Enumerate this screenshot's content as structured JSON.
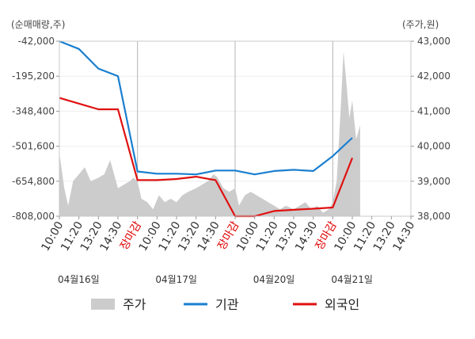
{
  "chart_data": {
    "type": "line",
    "left_axis_title": "(순매매량,주)",
    "right_axis_title": "(주가,원)",
    "left_ticks": [
      "-42,000",
      "-195,200",
      "-348,400",
      "-501,600",
      "-654,800",
      "-808,000"
    ],
    "right_ticks": [
      "43,000",
      "42,000",
      "41,000",
      "40,000",
      "39,000",
      "38,000"
    ],
    "left_range": [
      -808000,
      -42000
    ],
    "right_range": [
      38000,
      43000
    ],
    "x_ticks": [
      {
        "label": "10:00",
        "close": false
      },
      {
        "label": "11:20",
        "close": false
      },
      {
        "label": "13:20",
        "close": false
      },
      {
        "label": "14:30",
        "close": false
      },
      {
        "label": "장마감",
        "close": true
      },
      {
        "label": "10:00",
        "close": false
      },
      {
        "label": "11:20",
        "close": false
      },
      {
        "label": "13:20",
        "close": false
      },
      {
        "label": "14:30",
        "close": false
      },
      {
        "label": "장마감",
        "close": true
      },
      {
        "label": "10:00",
        "close": false
      },
      {
        "label": "11:20",
        "close": false
      },
      {
        "label": "13:20",
        "close": false
      },
      {
        "label": "14:30",
        "close": false
      },
      {
        "label": "장마감",
        "close": true
      },
      {
        "label": "10:00",
        "close": false
      },
      {
        "label": "11:20",
        "close": false
      },
      {
        "label": "13:20",
        "close": false
      },
      {
        "label": "14:30",
        "close": false
      }
    ],
    "dates": [
      "04월16일",
      "04월17일",
      "04월20일",
      "04월21일"
    ],
    "series": [
      {
        "name": "기관",
        "axis": "left",
        "color": "#1a7fd0",
        "points": [
          [
            0,
            -42000
          ],
          [
            1,
            -76000
          ],
          [
            2,
            -162000
          ],
          [
            3,
            -195000
          ],
          [
            4,
            -612000
          ],
          [
            5,
            -622000
          ],
          [
            6,
            -622000
          ],
          [
            7,
            -625000
          ],
          [
            8,
            -608000
          ],
          [
            9,
            -608000
          ],
          [
            10,
            -625000
          ],
          [
            11,
            -610000
          ],
          [
            12,
            -605000
          ],
          [
            13,
            -610000
          ],
          [
            14,
            -545000
          ],
          [
            15,
            -465000
          ]
        ]
      },
      {
        "name": "외국인",
        "axis": "left",
        "color": "#e01010",
        "points": [
          [
            0,
            -290000
          ],
          [
            1,
            -315000
          ],
          [
            2,
            -340000
          ],
          [
            3,
            -340000
          ],
          [
            4,
            -650000
          ],
          [
            5,
            -650000
          ],
          [
            6,
            -645000
          ],
          [
            7,
            -635000
          ],
          [
            8,
            -650000
          ],
          [
            9,
            -808000
          ],
          [
            10,
            -808000
          ],
          [
            11,
            -785000
          ],
          [
            12,
            -780000
          ],
          [
            13,
            -775000
          ],
          [
            14,
            -770000
          ],
          [
            15,
            -553000
          ]
        ]
      }
    ],
    "price_series": {
      "name": "주가",
      "axis": "right",
      "color": "#cccccc",
      "points": [
        [
          0,
          39800
        ],
        [
          0.25,
          38800
        ],
        [
          0.45,
          38300
        ],
        [
          0.7,
          39000
        ],
        [
          1.0,
          39200
        ],
        [
          1.3,
          39400
        ],
        [
          1.6,
          39000
        ],
        [
          2.0,
          39100
        ],
        [
          2.3,
          39200
        ],
        [
          2.6,
          39600
        ],
        [
          2.8,
          39200
        ],
        [
          3.0,
          38800
        ],
        [
          3.3,
          38900
        ],
        [
          3.6,
          39000
        ],
        [
          3.8,
          39100
        ],
        [
          4.0,
          39000
        ],
        [
          4.2,
          38500
        ],
        [
          4.5,
          38400
        ],
        [
          4.8,
          38200
        ],
        [
          5.1,
          38600
        ],
        [
          5.4,
          38400
        ],
        [
          5.7,
          38500
        ],
        [
          6.0,
          38400
        ],
        [
          6.3,
          38600
        ],
        [
          6.6,
          38700
        ],
        [
          7.0,
          38800
        ],
        [
          7.3,
          38900
        ],
        [
          7.6,
          39000
        ],
        [
          7.9,
          39200
        ],
        [
          8.1,
          39100
        ],
        [
          8.4,
          38800
        ],
        [
          8.7,
          38700
        ],
        [
          9.0,
          38800
        ],
        [
          9.2,
          38300
        ],
        [
          9.5,
          38600
        ],
        [
          9.8,
          38700
        ],
        [
          10.1,
          38600
        ],
        [
          10.4,
          38500
        ],
        [
          10.7,
          38400
        ],
        [
          11.0,
          38300
        ],
        [
          11.3,
          38200
        ],
        [
          11.6,
          38300
        ],
        [
          12.0,
          38200
        ],
        [
          12.3,
          38300
        ],
        [
          12.6,
          38400
        ],
        [
          12.9,
          38200
        ],
        [
          13.2,
          38300
        ],
        [
          13.5,
          38100
        ],
        [
          13.8,
          38200
        ],
        [
          14.0,
          38400
        ],
        [
          14.2,
          39000
        ],
        [
          14.4,
          41000
        ],
        [
          14.55,
          42700
        ],
        [
          14.7,
          41800
        ],
        [
          14.85,
          40800
        ],
        [
          15.0,
          41300
        ],
        [
          15.2,
          40200
        ],
        [
          15.4,
          40600
        ]
      ]
    },
    "legend": [
      {
        "label": "주가",
        "type": "area",
        "color": "#cccccc"
      },
      {
        "label": "기관",
        "type": "line",
        "color": "#1a7fd0"
      },
      {
        "label": "외국인",
        "type": "line",
        "color": "#e01010"
      }
    ],
    "grid": true
  }
}
